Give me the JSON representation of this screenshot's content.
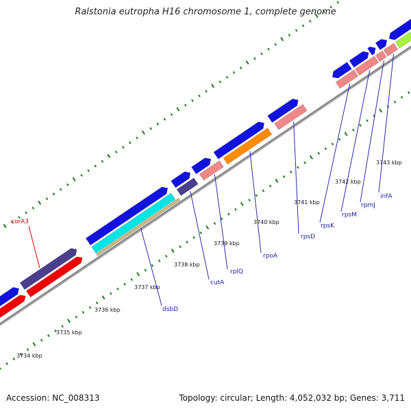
{
  "header": {
    "title": "Ralstonia eutropha H16 chromosome 1, complete genome"
  },
  "footer": {
    "accession": "Accession: NC_008313",
    "summary": "Topology: circular; Length: 4,052,032 bp; Genes: 3,711"
  },
  "colors": {
    "cds": "#1212e0",
    "trna": "#4a3f8c",
    "rrna": "#f08888",
    "red": "#ee0000",
    "orange": "#ff8c00",
    "cyan": "#00e5e5",
    "tan": "#c8b880",
    "green": "#a8f040",
    "backbone": "#888888",
    "tick": "#1a7a1a"
  },
  "ticks": [
    {
      "label": "3734 kbp"
    },
    {
      "label": "3735 kbp"
    },
    {
      "label": "3736 kbp"
    },
    {
      "label": "3737 kbp"
    },
    {
      "label": "3738 kbp"
    },
    {
      "label": "3739 kbp"
    },
    {
      "label": "3740 kbp"
    },
    {
      "label": "3741 kbp"
    },
    {
      "label": "3742 kbp"
    },
    {
      "label": "3743 kbp"
    }
  ],
  "gene_labels": [
    {
      "label": "corA3",
      "color": "red"
    },
    {
      "label": "dsbD",
      "color": "blue"
    },
    {
      "label": "cutA",
      "color": "blue"
    },
    {
      "label": "rplQ",
      "color": "blue"
    },
    {
      "label": "rpoA",
      "color": "blue"
    },
    {
      "label": "rpsD",
      "color": "blue"
    },
    {
      "label": "rpsK",
      "color": "blue"
    },
    {
      "label": "rpsM",
      "color": "blue"
    },
    {
      "label": "rpmJ",
      "color": "blue"
    },
    {
      "label": "infA",
      "color": "blue"
    }
  ]
}
